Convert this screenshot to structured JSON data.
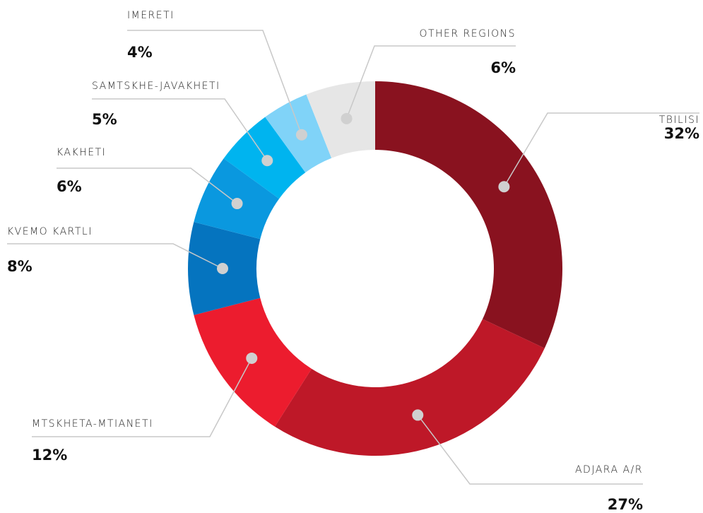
{
  "chart_data": {
    "type": "pie",
    "categories": [
      "TBILISI",
      "ADJARA A/R",
      "MTSKHETA-MTIANETI",
      "KVEMO KARTLI",
      "KAKHETI",
      "SAMTSKHE-JAVAKHETI",
      "IMERETI",
      "OTHER REGIONS"
    ],
    "values": [
      32,
      27,
      12,
      8,
      6,
      5,
      4,
      6
    ],
    "value_labels": [
      "32%",
      "27%",
      "12%",
      "8%",
      "6%",
      "5%",
      "4%",
      "6%"
    ],
    "colors": [
      "#89121f",
      "#be1828",
      "#ec1c2e",
      "#0574bf",
      "#0a98df",
      "#00b4ef",
      "#80d3f8",
      "#e6e6e6"
    ]
  }
}
